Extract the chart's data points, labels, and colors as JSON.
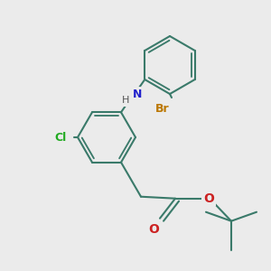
{
  "bg_color": "#ebebeb",
  "bond_color": "#3a7a6a",
  "bond_lw": 1.5,
  "atom_colors": {
    "N": "#2222cc",
    "Cl": "#22aa22",
    "Br": "#bb7700",
    "O": "#cc2222",
    "H": "#555555"
  },
  "figsize": [
    3.0,
    3.0
  ],
  "dpi": 100
}
